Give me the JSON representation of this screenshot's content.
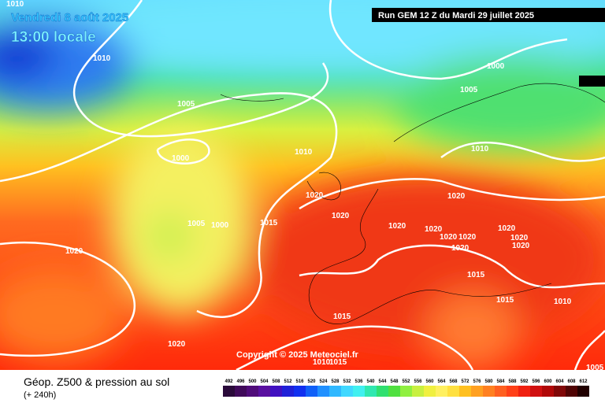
{
  "header": {
    "valid_time": "Vendredi 8 août 2025",
    "local_time": "13:00 locale",
    "run": "Run GEM 12 Z du Mardi 29 juillet 2025"
  },
  "copyright": "Copyright © 2025 Meteociel.fr",
  "footer": {
    "title": "Géop. Z500 & pression au sol",
    "lead": "(+ 240h)"
  },
  "isobar_labels": [
    "1010",
    "1010",
    "1005",
    "1000",
    "1010",
    "1020",
    "1020",
    "1005",
    "1000",
    "1015",
    "1020",
    "1000",
    "1005",
    "1010",
    "1020",
    "1020",
    "1020",
    "1020",
    "1020",
    "1020",
    "1020",
    "1020",
    "1020",
    "1015",
    "1015",
    "1010",
    "1015",
    "1020",
    "1010",
    "1015",
    "1005"
  ],
  "legend_scale": [
    492,
    496,
    500,
    504,
    508,
    512,
    516,
    520,
    524,
    528,
    532,
    536,
    540,
    544,
    548,
    552,
    556,
    560,
    564,
    568,
    572,
    576,
    580,
    584,
    588,
    592,
    596,
    600,
    604,
    608,
    612
  ]
}
